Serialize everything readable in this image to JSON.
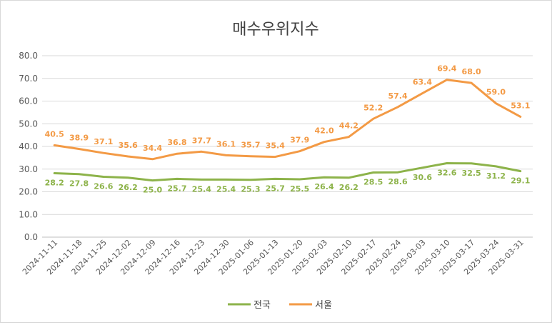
{
  "chart_data": {
    "type": "line",
    "title": "매수우위지수",
    "xlabel": "",
    "ylabel": "",
    "ylim": [
      0,
      80
    ],
    "yticks": [
      "0.0",
      "10.0",
      "20.0",
      "30.0",
      "40.0",
      "50.0",
      "60.0",
      "70.0",
      "80.0"
    ],
    "grid": true,
    "legend_position": "bottom",
    "categories": [
      "2024-11-11",
      "2024-11-18",
      "2024-11-25",
      "2024-12-02",
      "2024-12-09",
      "2024-12-16",
      "2024-12-23",
      "2024-12-30",
      "2025-01-06",
      "2025-01-13",
      "2025-01-20",
      "2025-02-03",
      "2025-02-10",
      "2025-02-17",
      "2025-02-24",
      "2025-03-03",
      "2025-03-10",
      "2025-03-17",
      "2025-03-24",
      "2025-03-31"
    ],
    "series": [
      {
        "name": "전국",
        "color": "#8db34a",
        "label_color": "#8db34a",
        "values": [
          28.2,
          27.8,
          26.6,
          26.2,
          25.0,
          25.7,
          25.4,
          25.4,
          25.3,
          25.7,
          25.5,
          26.4,
          26.2,
          28.5,
          28.6,
          30.6,
          32.6,
          32.5,
          31.2,
          29.1
        ],
        "labels": [
          "28.2",
          "27.8",
          "26.6",
          "26.2",
          "25.0",
          "25.7",
          "25.4",
          "25.4",
          "25.3",
          "25.7",
          "25.5",
          "26.4",
          "26.2",
          "28.5",
          "28.6",
          "30.6",
          "32.6",
          "32.5",
          "31.2",
          "29.1"
        ]
      },
      {
        "name": "서울",
        "color": "#f39a45",
        "label_color": "#f39a45",
        "values": [
          40.5,
          38.9,
          37.1,
          35.6,
          34.4,
          36.8,
          37.7,
          36.1,
          35.7,
          35.4,
          37.9,
          42.0,
          44.2,
          52.2,
          57.4,
          63.4,
          69.4,
          68.0,
          59.0,
          53.1
        ],
        "labels": [
          "40.5",
          "38.9",
          "37.1",
          "35.6",
          "34.4",
          "36.8",
          "37.7",
          "36.1",
          "35.7",
          "35.4",
          "37.9",
          "42.0",
          "44.2",
          "52.2",
          "57.4",
          "63.4",
          "69.4",
          "68.0",
          "59.0",
          "53.1"
        ]
      }
    ]
  }
}
